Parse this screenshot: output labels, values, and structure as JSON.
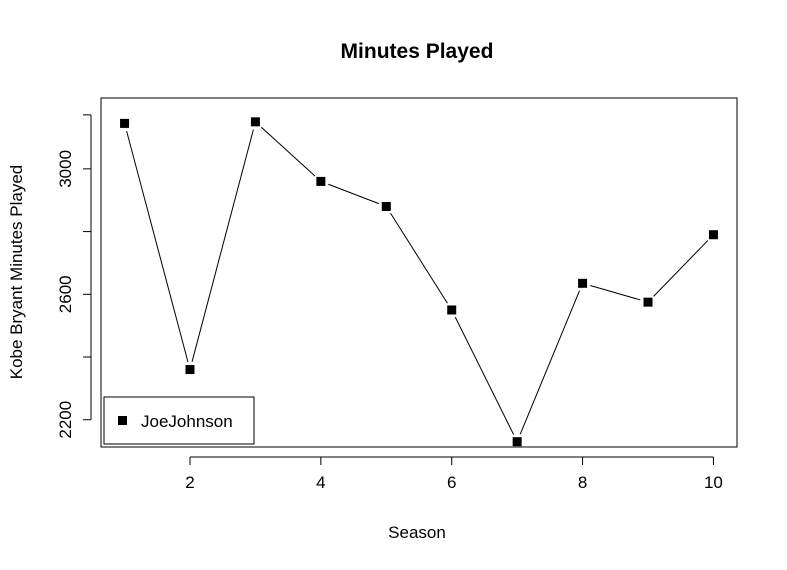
{
  "chart_data": {
    "type": "line",
    "title": "Minutes Played",
    "xlabel": "Season",
    "ylabel": "Kobe Bryant Minutes Played",
    "x": [
      1,
      2,
      3,
      4,
      5,
      6,
      7,
      8,
      9,
      10
    ],
    "series": [
      {
        "name": "JoeJohnson",
        "values": [
          3145,
          2360,
          3150,
          2960,
          2880,
          2550,
          2130,
          2635,
          2575,
          2790
        ],
        "marker": "square",
        "color": "#000000"
      }
    ],
    "xlim": [
      0.64,
      10.36
    ],
    "ylim": [
      2113,
      3226
    ],
    "xticks": [
      2,
      4,
      6,
      8,
      10
    ],
    "yticks": [
      2200,
      2600,
      3000
    ],
    "yticks_minor": [
      2400,
      2800
    ],
    "grid": false,
    "legend_position": "bottom-left"
  }
}
